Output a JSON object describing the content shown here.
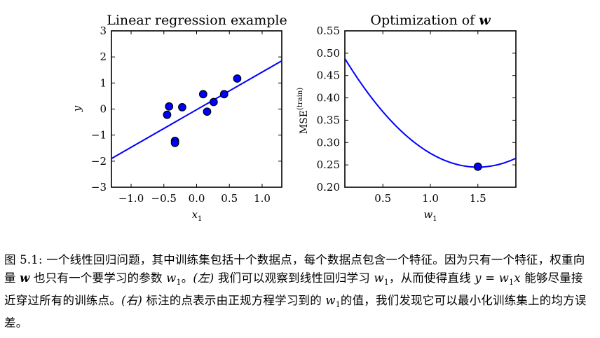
{
  "chart_data": [
    {
      "type": "scatter",
      "title": "Linear regression example",
      "xlabel": "x",
      "xlabel_sub": "1",
      "ylabel": "y",
      "xlim": [
        -1.3,
        1.3
      ],
      "ylim": [
        -3,
        3
      ],
      "xticks": [
        -1.0,
        -0.5,
        0.0,
        0.5,
        1.0
      ],
      "xtick_labels": [
        "−1.0",
        "−0.5",
        "0.0",
        "0.5",
        "1.0"
      ],
      "yticks": [
        -3,
        -2,
        -1,
        0,
        1,
        2,
        3
      ],
      "ytick_labels": [
        "−3",
        "−2",
        "−1",
        "0",
        "1",
        "2",
        "3"
      ],
      "points": {
        "x": [
          -0.45,
          -0.42,
          -0.33,
          -0.33,
          -0.22,
          0.1,
          0.16,
          0.26,
          0.42,
          0.62
        ],
        "y": [
          -0.22,
          0.1,
          -1.22,
          -1.3,
          0.07,
          0.57,
          -0.1,
          0.27,
          0.57,
          1.17
        ]
      },
      "fit_line": {
        "x": [
          -1.3,
          1.3
        ],
        "y": [
          -1.9,
          1.85
        ]
      },
      "marker_color": "#0000ff",
      "line_color": "#0000ff",
      "grid": false
    },
    {
      "type": "line",
      "title_prefix": "Optimization of ",
      "title_var": "w",
      "xlabel": "w",
      "xlabel_sub": "1",
      "ylabel": "MSE",
      "ylabel_sup": "(train)",
      "xlim": [
        0.1,
        1.9
      ],
      "ylim": [
        0.2,
        0.55
      ],
      "xticks": [
        0.5,
        1.0,
        1.5
      ],
      "xtick_labels": [
        "0.5",
        "1.0",
        "1.5"
      ],
      "yticks": [
        0.2,
        0.25,
        0.3,
        0.35,
        0.4,
        0.45,
        0.5,
        0.55
      ],
      "ytick_labels": [
        "0.20",
        "0.25",
        "0.30",
        "0.35",
        "0.40",
        "0.45",
        "0.50",
        "0.55"
      ],
      "curve": {
        "vertex_w": 1.5,
        "vertex_mse": 0.245,
        "curvature": 0.124
      },
      "marked_point": {
        "x": 1.5,
        "y": 0.246
      },
      "line_color": "#0000ff",
      "grid": false
    }
  ],
  "caption": {
    "label": "图 5.1:",
    "t1": " 一个线性回归问题，其中训练集包括十个数据点，每个数据点包含一个特征。因为只有一个特征，权重向量 ",
    "w": "w",
    "t2": " 也只有一个要学习的参数 ",
    "w1a": "w",
    "s1": "1",
    "t3": "。",
    "left": "(左)",
    "t4": " 我们可以观察到线性回归学习 ",
    "w1b": "w",
    "s2": "1",
    "t5": "，从而使得直线 ",
    "eq_y": "y",
    "eq_mid": " = ",
    "eq_w": "w",
    "s3": "1",
    "eq_x": "x",
    "t6": " 能够尽量接近穿过所有的训练点。",
    "right": "(右)",
    "t7": " 标注的点表示由正规方程学习到的 ",
    "w1c": "w",
    "s4": "1",
    "t8": "的值，我们发现它可以最小化训练集上的均方误差。"
  }
}
